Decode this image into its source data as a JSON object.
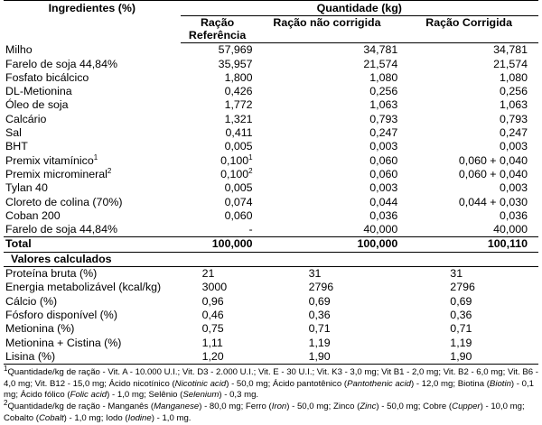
{
  "header": {
    "ingredientes": "Ingredientes (%)",
    "quantidade": "Quantidade (kg)",
    "col_referencia": "Ração Referência",
    "col_nao_corrigida": "Ração não corrigida",
    "col_corrigida": "Ração Corrigida"
  },
  "ingredients": [
    {
      "name": "Milho",
      "ref": "57,969",
      "nc": "34,781",
      "corr": "34,781"
    },
    {
      "name": "Farelo de soja 44,84%",
      "ref": "35,957",
      "nc": "21,574",
      "corr": "21,574"
    },
    {
      "name": "Fosfato bicálcico",
      "ref": "1,800",
      "nc": "1,080",
      "corr": "1,080"
    },
    {
      "name": "DL-Metionina",
      "ref": "0,426",
      "nc": "0,256",
      "corr": "0,256"
    },
    {
      "name": "Óleo de soja",
      "ref": "1,772",
      "nc": "1,063",
      "corr": "1,063"
    },
    {
      "name": "Calcário",
      "ref": "1,321",
      "nc": "0,793",
      "corr": "0,793"
    },
    {
      "name": "Sal",
      "ref": "0,411",
      "nc": "0,247",
      "corr": "0,247"
    },
    {
      "name": "BHT",
      "ref": "0,005",
      "nc": "0,003",
      "corr": "0,003"
    },
    {
      "name": "Premix vitamínico",
      "name_sup": "1",
      "ref": "0,100",
      "ref_sup": "1",
      "nc": "0,060",
      "corr": "0,060 + 0,040"
    },
    {
      "name": "Premix micromineral",
      "name_sup": "2",
      "ref": "0,100",
      "ref_sup": "2",
      "nc": "0,060",
      "corr": "0,060 + 0,040"
    },
    {
      "name": "Tylan 40",
      "ref": "0,005",
      "nc": "0,003",
      "corr": "0,003"
    },
    {
      "name": "Cloreto de colina (70%)",
      "ref": "0,074",
      "nc": "0,044",
      "corr": "0,044 + 0,030"
    },
    {
      "name": "Coban 200",
      "ref": "0,060",
      "nc": "0,036",
      "corr": "0,036"
    },
    {
      "name": "Farelo de soja 44,84%",
      "ref": "-",
      "nc": "40,000",
      "corr": "40,000"
    }
  ],
  "total": {
    "name": "Total",
    "ref": "100,000",
    "nc": "100,000",
    "corr": "100,110"
  },
  "section_title": "Valores calculados",
  "calculated": [
    {
      "name": "Proteína bruta (%)",
      "ref": "21",
      "nc": "31",
      "corr": "31"
    },
    {
      "name": "Energia metabolizável (kcal/kg)",
      "ref": "3000",
      "nc": "2796",
      "corr": "2796"
    },
    {
      "name": "Cálcio (%)",
      "ref": "0,96",
      "nc": "0,69",
      "corr": "0,69"
    },
    {
      "name": "Fósforo disponível (%)",
      "ref": "0,46",
      "nc": "0,36",
      "corr": "0,36"
    },
    {
      "name": "Metionina (%)",
      "ref": "0,75",
      "nc": "0,71",
      "corr": "0,71"
    },
    {
      "name": "Metionina + Cistina (%)",
      "ref": "1,11",
      "nc": "1,19",
      "corr": "1,19"
    },
    {
      "name": "Lisina (%)",
      "ref": "1,20",
      "nc": "1,90",
      "corr": "1,90"
    }
  ],
  "footnotes": {
    "fn1": {
      "mark": "1",
      "parts": [
        {
          "t": "Quantidade/kg de ração - Vit. A - 10.000 U.I.; Vit. D3 - 2.000 U.I.; Vit. E - 30 U.I.; Vit. K3 - 3,0 mg; Vit B1 - 2,0 mg; Vit. B2 - 6,0 mg; Vit. B6 - 4,0 mg; Vit. B12 - 15,0 mg; Ácido nicotínico ("
        },
        {
          "t": "Nicotinic acid",
          "i": true
        },
        {
          "t": ") - 50,0 mg; Ácido pantotênico ("
        },
        {
          "t": "Pantothenic acid",
          "i": true
        },
        {
          "t": ") - 12,0 mg; Biotina ("
        },
        {
          "t": "Biotin",
          "i": true
        },
        {
          "t": ") - 0,1 mg; Ácido fólico ("
        },
        {
          "t": "Folic acid",
          "i": true
        },
        {
          "t": ") - 1,0 mg; Selênio ("
        },
        {
          "t": "Selenium",
          "i": true
        },
        {
          "t": ") - 0,3 mg."
        }
      ]
    },
    "fn2": {
      "mark": "2",
      "parts": [
        {
          "t": "Quantidade/kg de ração - Manganês ("
        },
        {
          "t": "Manganese",
          "i": true
        },
        {
          "t": ") - 80,0 mg; Ferro ("
        },
        {
          "t": "Iron",
          "i": true
        },
        {
          "t": ") - 50,0 mg; Zinco ("
        },
        {
          "t": "Zinc",
          "i": true
        },
        {
          "t": ") - 50,0 mg; Cobre ("
        },
        {
          "t": "Cupper",
          "i": true
        },
        {
          "t": ") - 10,0 mg; Cobalto ("
        },
        {
          "t": "Cobalt",
          "i": true
        },
        {
          "t": ") - 1,0 mg; Iodo ("
        },
        {
          "t": "Iodine",
          "i": true
        },
        {
          "t": ") - 1,0 mg."
        }
      ]
    }
  }
}
